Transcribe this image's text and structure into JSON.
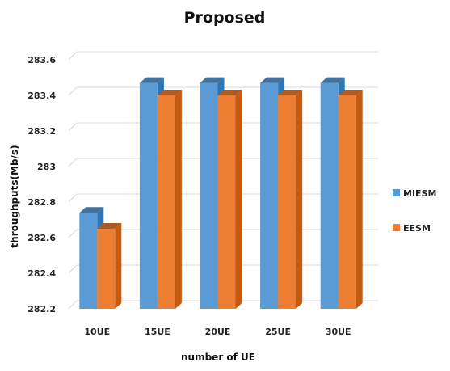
{
  "chart_data": {
    "type": "bar",
    "title": "Proposed",
    "xlabel": "number of UE",
    "ylabel": "throughputs(Mb/s)",
    "categories": [
      "10UE",
      "15UE",
      "20UE",
      "25UE",
      "30UE"
    ],
    "series": [
      {
        "name": "MIESM",
        "values": [
          282.74,
          283.47,
          283.47,
          283.47,
          283.47
        ],
        "color": "#5b9bd5",
        "side_color": "#2e75b6",
        "top_color": "#41719c"
      },
      {
        "name": "EESM",
        "values": [
          282.65,
          283.4,
          283.4,
          283.4,
          283.4
        ],
        "color": "#ed7d31",
        "side_color": "#c55a11",
        "top_color": "#ae5a21"
      }
    ],
    "ylim": [
      282.2,
      283.6
    ],
    "yticks": [
      "282.2",
      "282.4",
      "282.6",
      "282.8",
      "283",
      "283.2",
      "283.4",
      "283.6"
    ],
    "grid": true,
    "legend_position": "right"
  }
}
